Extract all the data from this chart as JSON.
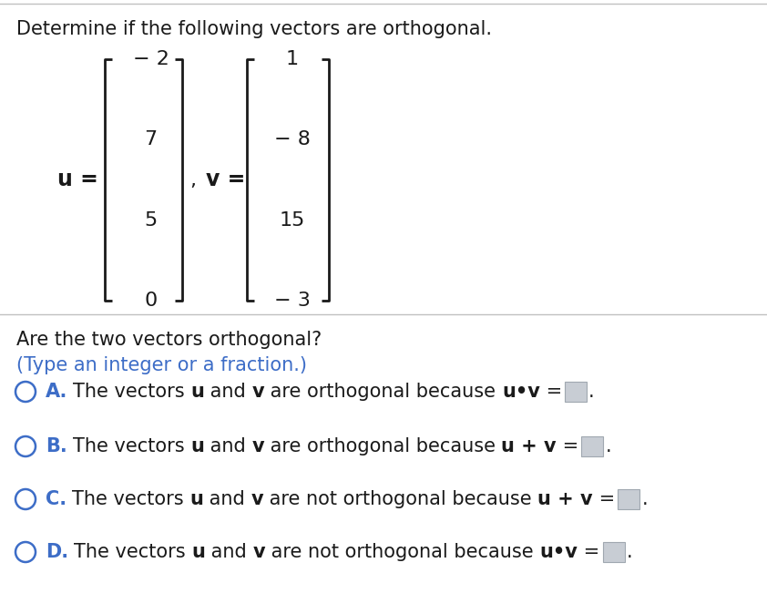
{
  "title": "Determine if the following vectors are orthogonal.",
  "u_vector": [
    "− 2",
    "7",
    "5",
    "0"
  ],
  "v_vector": [
    "1",
    "− 8",
    "15",
    "− 3"
  ],
  "question_line1": "Are the two vectors orthogonal?",
  "question_line2": "(Type an integer or a fraction.)",
  "option_data": [
    {
      "letter": "A.",
      "orth": "orthogonal",
      "expr": "u•v"
    },
    {
      "letter": "B.",
      "orth": "orthogonal",
      "expr": "u + v"
    },
    {
      "letter": "C.",
      "orth": "not orthogonal",
      "expr": "u + v"
    },
    {
      "letter": "D.",
      "orth": "not orthogonal",
      "expr": "u•v"
    }
  ],
  "bg_color": "#ffffff",
  "text_color": "#1a1a1a",
  "blue_color": "#3d6dc7",
  "circle_color": "#3d6dc7",
  "box_fill": "#c8cdd4",
  "box_edge": "#a0a8b0",
  "sep_color": "#c0c0c0",
  "title_fs": 15,
  "vec_fs": 16,
  "q_fs": 15,
  "opt_fs": 15,
  "letter_fs": 15
}
